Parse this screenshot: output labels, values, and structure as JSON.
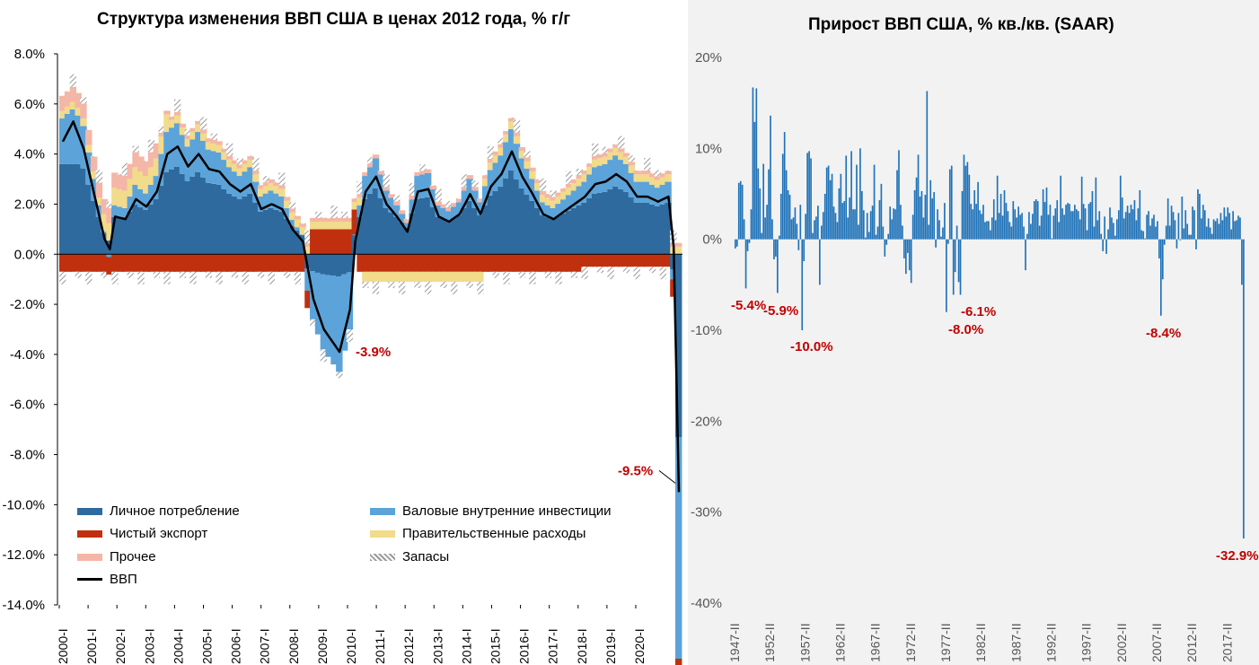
{
  "left_title": "Структура изменения ВВП США в ценах 2012 года, % г/г",
  "right_title": "Прирост ВВП США, % кв./кв. (SAAR)",
  "chart_data": [
    {
      "type": "bar",
      "title": "Структура изменения ВВП США в ценах 2012 года, % г/г",
      "ylim": [
        -14,
        8
      ],
      "yticks": [
        "8.0%",
        "6.0%",
        "4.0%",
        "2.0%",
        "0.0%",
        "-2.0%",
        "-4.0%",
        "-6.0%",
        "-8.0%",
        "-10.0%",
        "-12.0%",
        "-14.0%"
      ],
      "ytick_values": [
        8,
        6,
        4,
        2,
        0,
        -2,
        -4,
        -6,
        -8,
        -10,
        -12,
        -14
      ],
      "xticks": [
        "2000-I",
        "2001-I",
        "2002-I",
        "2003-I",
        "2004-I",
        "2005-I",
        "2006-I",
        "2007-I",
        "2008-I",
        "2009-I",
        "2010-I",
        "2011-I",
        "2012-I",
        "2013-I",
        "2014-I",
        "2015-I",
        "2016-I",
        "2017-I",
        "2018-I",
        "2019-I",
        "2020-I"
      ],
      "legend": {
        "consumption": "Личное потребление",
        "investment": "Валовые внутренние инвестиции",
        "net_exports": "Чистый экспорт",
        "government": "Правительственные расходы",
        "other": "Прочее",
        "inventories": "Запасы",
        "gdp": "ВВП"
      },
      "colors": {
        "consumption": "#2e6a9e",
        "investment": "#5ba3d9",
        "net_exports": "#c0300f",
        "government": "#f2db8a",
        "other": "#f4b6a6",
        "inventories": "#9a9a9a",
        "gdp": "#000000"
      },
      "annotations": [
        "-3.9%",
        "-9.5%"
      ],
      "anchors": [
        {
          "q": 0,
          "gdp": 4.5
        },
        {
          "q": 2,
          "gdp": 5.3
        },
        {
          "q": 4,
          "gdp": 4.2
        },
        {
          "q": 6,
          "gdp": 2.4
        },
        {
          "q": 8,
          "gdp": 0.6
        },
        {
          "q": 9,
          "gdp": 0.2
        },
        {
          "q": 10,
          "gdp": 1.5
        },
        {
          "q": 12,
          "gdp": 1.4
        },
        {
          "q": 14,
          "gdp": 2.2
        },
        {
          "q": 16,
          "gdp": 1.9
        },
        {
          "q": 18,
          "gdp": 2.5
        },
        {
          "q": 20,
          "gdp": 4.0
        },
        {
          "q": 22,
          "gdp": 4.3
        },
        {
          "q": 24,
          "gdp": 3.5
        },
        {
          "q": 26,
          "gdp": 4.0
        },
        {
          "q": 28,
          "gdp": 3.4
        },
        {
          "q": 30,
          "gdp": 3.3
        },
        {
          "q": 32,
          "gdp": 2.8
        },
        {
          "q": 34,
          "gdp": 2.5
        },
        {
          "q": 36,
          "gdp": 2.8
        },
        {
          "q": 38,
          "gdp": 1.8
        },
        {
          "q": 40,
          "gdp": 2.0
        },
        {
          "q": 42,
          "gdp": 1.8
        },
        {
          "q": 44,
          "gdp": 1.0
        },
        {
          "q": 46,
          "gdp": 0.5
        },
        {
          "q": 48,
          "gdp": -1.8
        },
        {
          "q": 50,
          "gdp": -3.0
        },
        {
          "q": 53,
          "gdp": -3.9
        },
        {
          "q": 55,
          "gdp": -2.2
        },
        {
          "q": 56,
          "gdp": 0.5
        },
        {
          "q": 58,
          "gdp": 2.5
        },
        {
          "q": 60,
          "gdp": 3.1
        },
        {
          "q": 62,
          "gdp": 2.0
        },
        {
          "q": 64,
          "gdp": 1.5
        },
        {
          "q": 66,
          "gdp": 0.9
        },
        {
          "q": 68,
          "gdp": 2.5
        },
        {
          "q": 70,
          "gdp": 2.6
        },
        {
          "q": 72,
          "gdp": 1.5
        },
        {
          "q": 74,
          "gdp": 1.3
        },
        {
          "q": 76,
          "gdp": 1.6
        },
        {
          "q": 78,
          "gdp": 2.4
        },
        {
          "q": 80,
          "gdp": 1.6
        },
        {
          "q": 82,
          "gdp": 2.7
        },
        {
          "q": 84,
          "gdp": 3.2
        },
        {
          "q": 86,
          "gdp": 4.1
        },
        {
          "q": 88,
          "gdp": 3.1
        },
        {
          "q": 90,
          "gdp": 2.4
        },
        {
          "q": 92,
          "gdp": 1.6
        },
        {
          "q": 94,
          "gdp": 1.4
        },
        {
          "q": 96,
          "gdp": 1.7
        },
        {
          "q": 98,
          "gdp": 2.0
        },
        {
          "q": 100,
          "gdp": 2.3
        },
        {
          "q": 102,
          "gdp": 2.8
        },
        {
          "q": 104,
          "gdp": 2.9
        },
        {
          "q": 106,
          "gdp": 3.2
        },
        {
          "q": 108,
          "gdp": 2.9
        },
        {
          "q": 110,
          "gdp": 2.3
        },
        {
          "q": 112,
          "gdp": 2.3
        },
        {
          "q": 114,
          "gdp": 2.1
        },
        {
          "q": 116,
          "gdp": 2.3
        },
        {
          "q": 117,
          "gdp": 0.3
        },
        {
          "q": 118,
          "gdp": -9.5
        }
      ]
    },
    {
      "type": "bar",
      "title": "Прирост ВВП США, % кв./кв. (SAAR)",
      "ylim": [
        -40,
        20
      ],
      "yticks": [
        "20%",
        "10%",
        "0%",
        "-10%",
        "-20%",
        "-30%",
        "-40%"
      ],
      "ytick_values": [
        20,
        10,
        0,
        -10,
        -20,
        -30,
        -40
      ],
      "xticks": [
        "1947-II",
        "1952-II",
        "1957-II",
        "1962-II",
        "1967-II",
        "1972-II",
        "1977-II",
        "1982-II",
        "1987-II",
        "1992-II",
        "1997-II",
        "2002-II",
        "2007-II",
        "2012-II",
        "2017-II"
      ],
      "annotations": [
        "-5.4%",
        "-5.9%",
        "-10.0%",
        "-6.1%",
        "-8.0%",
        "-8.4%",
        "-32.9%"
      ],
      "color": "#1f72b8",
      "series_start": "1947-II",
      "values": [
        -1.0,
        -0.8,
        6.2,
        6.4,
        6.0,
        2.2,
        -5.4,
        -1.3,
        -0.4,
        3.3,
        16.7,
        12.9,
        16.6,
        7.8,
        5.6,
        0.7,
        8.3,
        2.4,
        3.8,
        7.7,
        13.6,
        2.2,
        -2.2,
        -1.9,
        -5.9,
        0.4,
        5.0,
        9.4,
        11.8,
        7.6,
        5.4,
        4.9,
        2.2,
        2.4,
        3.5,
        1.7,
        -1.2,
        3.8,
        -10.0,
        -2.4,
        2.8,
        9.5,
        9.7,
        8.9,
        0.7,
        2.1,
        2.5,
        3.7,
        -5.0,
        1.5,
        3.0,
        5.0,
        7.9,
        8.1,
        6.5,
        7.2,
        3.6,
        2.9,
        1.9,
        5.6,
        7.2,
        4.0,
        4.2,
        9.2,
        2.4,
        4.6,
        9.7,
        3.3,
        3.3,
        8.2,
        1.6,
        10.0,
        5.3,
        3.2,
        0.2,
        2.9,
        0.8,
        3.1,
        3.7,
        8.2,
        0.5,
        1.4,
        4.3,
        6.1,
        1.4,
        -1.9,
        -0.6,
        0.6,
        3.6,
        2.2,
        3.4,
        3.3,
        7.6,
        9.8,
        3.8,
        1.5,
        -2.1,
        -3.8,
        -1.5,
        -3.4,
        -4.8,
        2.7,
        5.4,
        6.8,
        9.3,
        4.7,
        5.3,
        2.4,
        4.9,
        16.3,
        1.6,
        6.5,
        4.5,
        5.2,
        -0.9,
        3.3,
        2.1,
        0.3,
        1.3,
        4.0,
        -8.0,
        -0.5,
        7.7,
        8.1,
        -6.1,
        -3.6,
        1.5,
        -4.7,
        -6.1,
        5.3,
        9.3,
        8.1,
        8.5,
        7.1,
        3.9,
        3.3,
        5.4,
        3.9,
        6.3,
        3.2,
        2.8,
        3.8,
        1.9,
        2.0,
        2.0,
        1.0,
        2.4,
        4.4,
        2.1,
        7.0,
        2.9,
        5.0,
        2.6,
        5.4,
        4.0,
        3.1,
        1.9,
        1.4,
        4.2,
        3.3,
        2.4,
        3.6,
        2.7,
        2.9,
        1.4,
        -3.4,
        0.6,
        3.0,
        1.7,
        2.8,
        4.2,
        4.4,
        4.2,
        1.5,
        2.6,
        5.5,
        4.1,
        5.7,
        2.7,
        3.8,
        0.1,
        2.6,
        3.4,
        4.3,
        1.9,
        7.0,
        3.4,
        2.7,
        3.8,
        4.0,
        3.9,
        3.1,
        3.1,
        3.8,
        3.3,
        3.1,
        2.2,
        6.9,
        3.9,
        3.4,
        1.0,
        3.9,
        4.1,
        5.3,
        1.4,
        6.8,
        2.1,
        3.1,
        0.6,
        -1.3,
        2.5,
        -1.6,
        1.1,
        3.5,
        2.4,
        1.8,
        0.4,
        2.2,
        3.2,
        7.0,
        4.6,
        2.3,
        3.0,
        3.7,
        2.9,
        3.8,
        3.3,
        4.3,
        2.1,
        3.4,
        5.4,
        1.0,
        0.9,
        0.1,
        2.7,
        3.1,
        1.5,
        2.3,
        2.7,
        1.4,
        2.0,
        -2.1,
        -8.4,
        -4.4,
        -0.6,
        1.5,
        4.5,
        1.5,
        3.7,
        3.0,
        2.1,
        -1.0,
        2.9,
        -0.1,
        4.7,
        1.2,
        3.2,
        1.7,
        0.5,
        0.5,
        3.6,
        3.2,
        -1.1,
        5.5,
        5.0,
        2.3,
        3.8,
        3.2,
        1.4,
        2.3,
        1.3,
        0.6,
        2.2,
        2.0,
        2.3,
        1.7,
        2.9,
        2.1,
        3.5,
        2.5,
        3.5,
        2.9,
        1.1,
        3.1,
        2.0,
        2.1,
        2.6,
        2.4,
        -5.0,
        -32.9
      ]
    }
  ]
}
